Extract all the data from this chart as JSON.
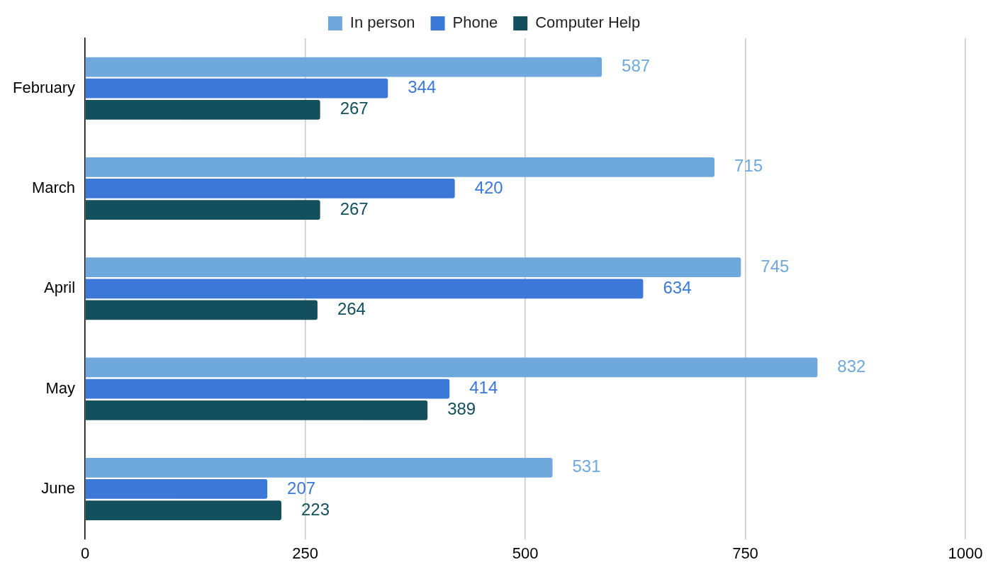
{
  "chart_data": {
    "type": "bar",
    "orientation": "horizontal",
    "categories": [
      "February",
      "March",
      "April",
      "May",
      "June"
    ],
    "series": [
      {
        "name": "In person",
        "color": "#6fa8dc",
        "values": [
          587,
          715,
          745,
          832,
          531
        ]
      },
      {
        "name": "Phone",
        "color": "#3c78d8",
        "values": [
          344,
          420,
          634,
          414,
          207
        ]
      },
      {
        "name": "Computer Help",
        "color": "#134f5c",
        "values": [
          267,
          267,
          264,
          389,
          223
        ]
      }
    ],
    "xlim": [
      0,
      1000
    ],
    "xticks": [
      0,
      250,
      500,
      750,
      1000
    ],
    "grid": "x",
    "legend": "top",
    "data_labels": true
  }
}
